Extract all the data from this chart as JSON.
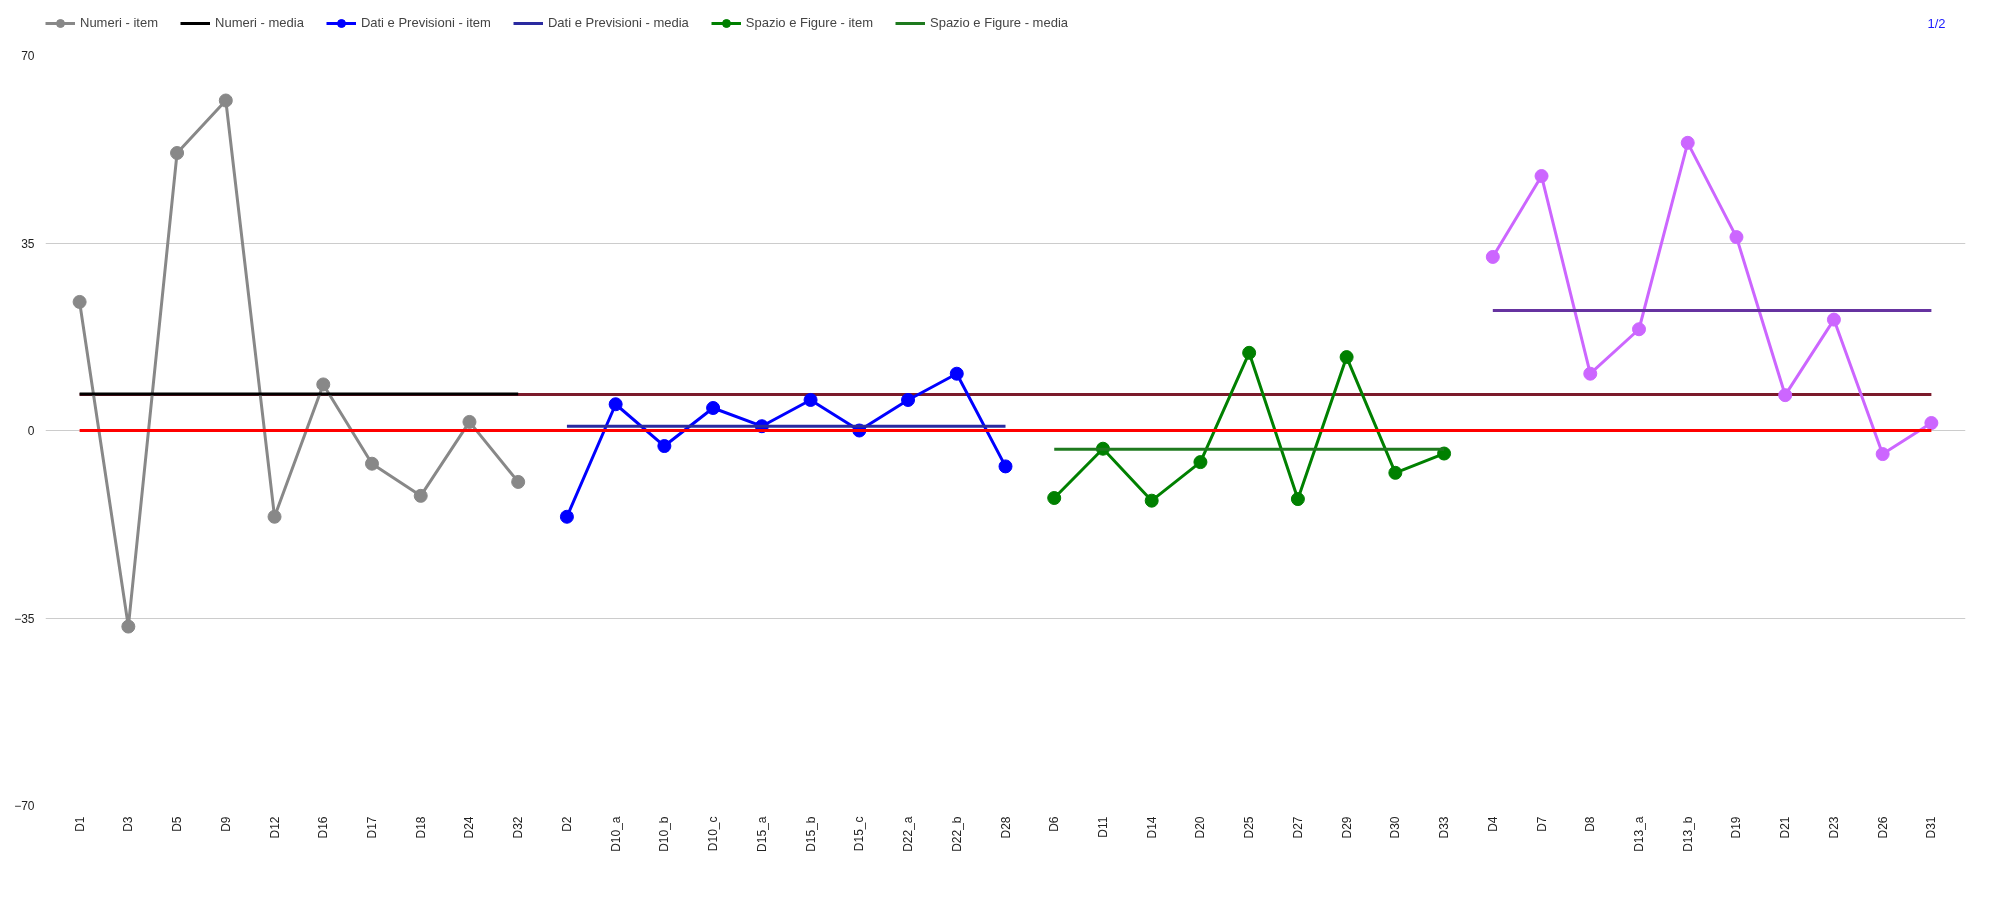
{
  "chart_data": {
    "type": "line",
    "categories": [
      "D1",
      "D3",
      "D5",
      "D9",
      "D12",
      "D16",
      "D17",
      "D18",
      "D24",
      "D32",
      "D2",
      "D10_a",
      "D10_b",
      "D10_c",
      "D15_a",
      "D15_b",
      "D15_c",
      "D22_a",
      "D22_b",
      "D28",
      "D6",
      "D11",
      "D14",
      "D20",
      "D25",
      "D27",
      "D29",
      "D30",
      "D33",
      "D4",
      "D7",
      "D8",
      "D13_a",
      "D13_b",
      "D19",
      "D21",
      "D23",
      "D26",
      "D31"
    ],
    "series": [
      {
        "color": "#7b1a2a",
        "marker": "none",
        "values": [
          6.7,
          6.7,
          6.7,
          6.7,
          6.7,
          6.7,
          6.7,
          6.7,
          6.7,
          6.7,
          6.7,
          6.7,
          6.7,
          6.7,
          6.7,
          6.7,
          6.7,
          6.7,
          6.7,
          6.7,
          6.7,
          6.7,
          6.7,
          6.7,
          6.7,
          6.7,
          6.7,
          6.7,
          6.7,
          6.7,
          6.7,
          6.7,
          6.7,
          6.7,
          6.7,
          6.7,
          6.7,
          6.7,
          6.7
        ]
      },
      {
        "name": "Numeri - item",
        "color": "#888888",
        "marker": "circle",
        "values": [
          24,
          -36.6,
          51.8,
          61.6,
          -16.1,
          8.6,
          -6.2,
          -12.2,
          1.6,
          -9.6,
          null,
          null,
          null,
          null,
          null,
          null,
          null,
          null,
          null,
          null,
          null,
          null,
          null,
          null,
          null,
          null,
          null,
          null,
          null,
          null,
          null,
          null,
          null,
          null,
          null,
          null,
          null,
          null,
          null
        ]
      },
      {
        "name": "Numeri - media",
        "color": "#000000",
        "marker": "none",
        "values": [
          6.8,
          6.8,
          6.8,
          6.8,
          6.8,
          6.8,
          6.8,
          6.8,
          6.8,
          6.8,
          null,
          null,
          null,
          null,
          null,
          null,
          null,
          null,
          null,
          null,
          null,
          null,
          null,
          null,
          null,
          null,
          null,
          null,
          null,
          null,
          null,
          null,
          null,
          null,
          null,
          null,
          null,
          null,
          null
        ]
      },
      {
        "name": "Dati e Previsioni - item",
        "color": "#0000ff",
        "marker": "circle",
        "values": [
          null,
          null,
          null,
          null,
          null,
          null,
          null,
          null,
          null,
          null,
          -16.1,
          4.9,
          -2.9,
          4.2,
          0.8,
          5.7,
          0,
          5.7,
          10.6,
          -6.7,
          null,
          null,
          null,
          null,
          null,
          null,
          null,
          null,
          null,
          null,
          null,
          null,
          null,
          null,
          null,
          null,
          null,
          null,
          null
        ]
      },
      {
        "name": "Dati e Previsioni - media",
        "color": "#2a2aa0",
        "marker": "none",
        "values": [
          null,
          null,
          null,
          null,
          null,
          null,
          null,
          null,
          null,
          null,
          0.8,
          0.8,
          0.8,
          0.8,
          0.8,
          0.8,
          0.8,
          0.8,
          0.8,
          0.8,
          null,
          null,
          null,
          null,
          null,
          null,
          null,
          null,
          null,
          null,
          null,
          null,
          null,
          null,
          null,
          null,
          null,
          null,
          null
        ]
      },
      {
        "name": "Spazio e Figure - item",
        "color": "#008000",
        "marker": "circle",
        "values": [
          null,
          null,
          null,
          null,
          null,
          null,
          null,
          null,
          null,
          null,
          null,
          null,
          null,
          null,
          null,
          null,
          null,
          null,
          null,
          null,
          -12.6,
          -3.4,
          -13.1,
          -5.9,
          14.5,
          -12.8,
          13.7,
          -7.9,
          -4.3,
          null,
          null,
          null,
          null,
          null,
          null,
          null,
          null,
          null,
          null
        ]
      },
      {
        "name": "Spazio e Figure - media",
        "color": "#1e7a1e",
        "marker": "none",
        "values": [
          null,
          null,
          null,
          null,
          null,
          null,
          null,
          null,
          null,
          null,
          null,
          null,
          null,
          null,
          null,
          null,
          null,
          null,
          null,
          null,
          -3.5,
          -3.5,
          -3.5,
          -3.5,
          -3.5,
          -3.5,
          -3.5,
          -3.5,
          -3.5,
          null,
          null,
          null,
          null,
          null,
          null,
          null,
          null,
          null,
          null
        ]
      },
      {
        "color": "#cc66ff",
        "marker": "circle",
        "values": [
          null,
          null,
          null,
          null,
          null,
          null,
          null,
          null,
          null,
          null,
          null,
          null,
          null,
          null,
          null,
          null,
          null,
          null,
          null,
          null,
          null,
          null,
          null,
          null,
          null,
          null,
          null,
          null,
          null,
          32.4,
          47.5,
          10.6,
          18.9,
          53.7,
          36.1,
          6.6,
          20.7,
          -4.4,
          1.4
        ]
      },
      {
        "color": "#6633a0",
        "marker": "none",
        "values": [
          null,
          null,
          null,
          null,
          null,
          null,
          null,
          null,
          null,
          null,
          null,
          null,
          null,
          null,
          null,
          null,
          null,
          null,
          null,
          null,
          null,
          null,
          null,
          null,
          null,
          null,
          null,
          null,
          null,
          22.4,
          22.4,
          22.4,
          22.4,
          22.4,
          22.4,
          22.4,
          22.4,
          22.4,
          22.4
        ]
      },
      {
        "color": "#ff0000",
        "marker": "none",
        "values": [
          0,
          0,
          0,
          0,
          0,
          0,
          0,
          0,
          0,
          0,
          0,
          0,
          0,
          0,
          0,
          0,
          0,
          0,
          0,
          0,
          0,
          0,
          0,
          0,
          0,
          0,
          0,
          0,
          0,
          0,
          0,
          0,
          0,
          0,
          0,
          0,
          0,
          0,
          0
        ]
      }
    ],
    "ylim": [
      -70,
      70
    ],
    "yticks": [
      -70,
      -35,
      0,
      35,
      70
    ],
    "grid": "y",
    "legend": "top",
    "annotations": [
      "1/2"
    ]
  }
}
